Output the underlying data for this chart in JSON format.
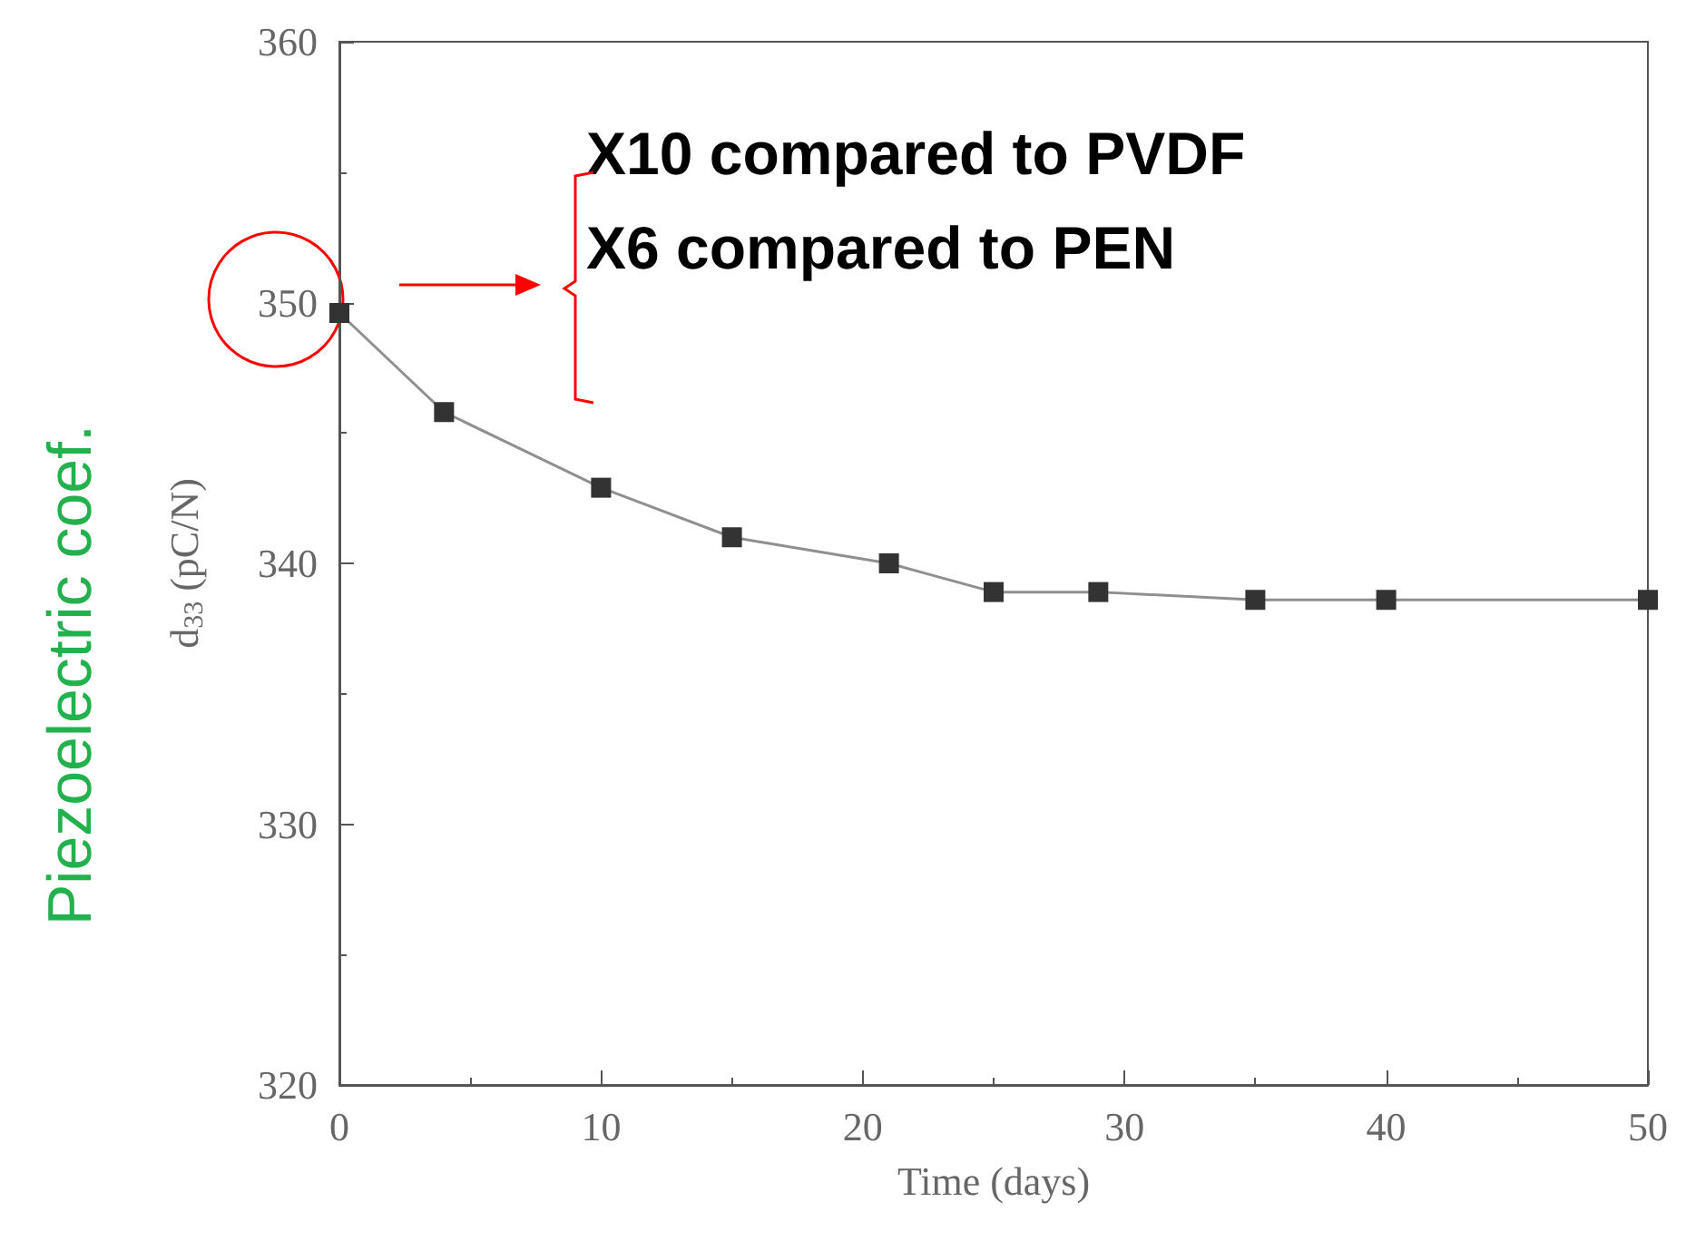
{
  "chart_data": {
    "type": "line",
    "xlabel": "Time (days)",
    "ylabel": "d$_{33}$ (pC/N)",
    "x": [
      0,
      4,
      10,
      15,
      21,
      25,
      29,
      35,
      40,
      50
    ],
    "series": [
      {
        "color": "#333333",
        "values": [
          349.6,
          345.8,
          342.9,
          341.0,
          340.0,
          338.9,
          338.9,
          338.6,
          338.6,
          338.6
        ]
      }
    ],
    "xlim": [
      0,
      50
    ],
    "xticks": [
      0,
      10,
      20,
      30,
      40,
      50
    ],
    "ylim": [
      320,
      360
    ],
    "yticks": [
      320,
      330,
      340,
      350,
      360
    ],
    "grid": false,
    "marker": "square",
    "line_style": "solid",
    "annotations": [
      "X10 compared to PVDF",
      "X6 compared to PEN",
      "Piezoelectric coef."
    ]
  }
}
